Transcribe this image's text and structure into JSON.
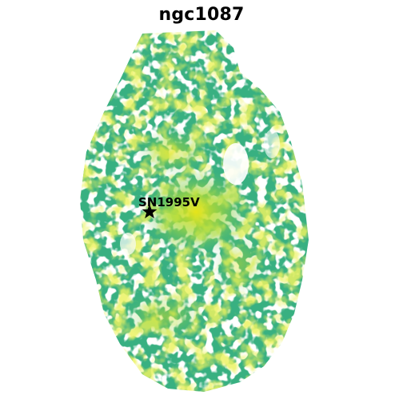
{
  "title": "ngc1087",
  "supernova": {
    "label": "SN1995V",
    "marker": "star-icon"
  },
  "colors": {
    "low": "#2a9d8f",
    "mid": "#5bbf6a",
    "high": "#d7e21f",
    "background": "#ffffff",
    "marker": "#000000"
  }
}
